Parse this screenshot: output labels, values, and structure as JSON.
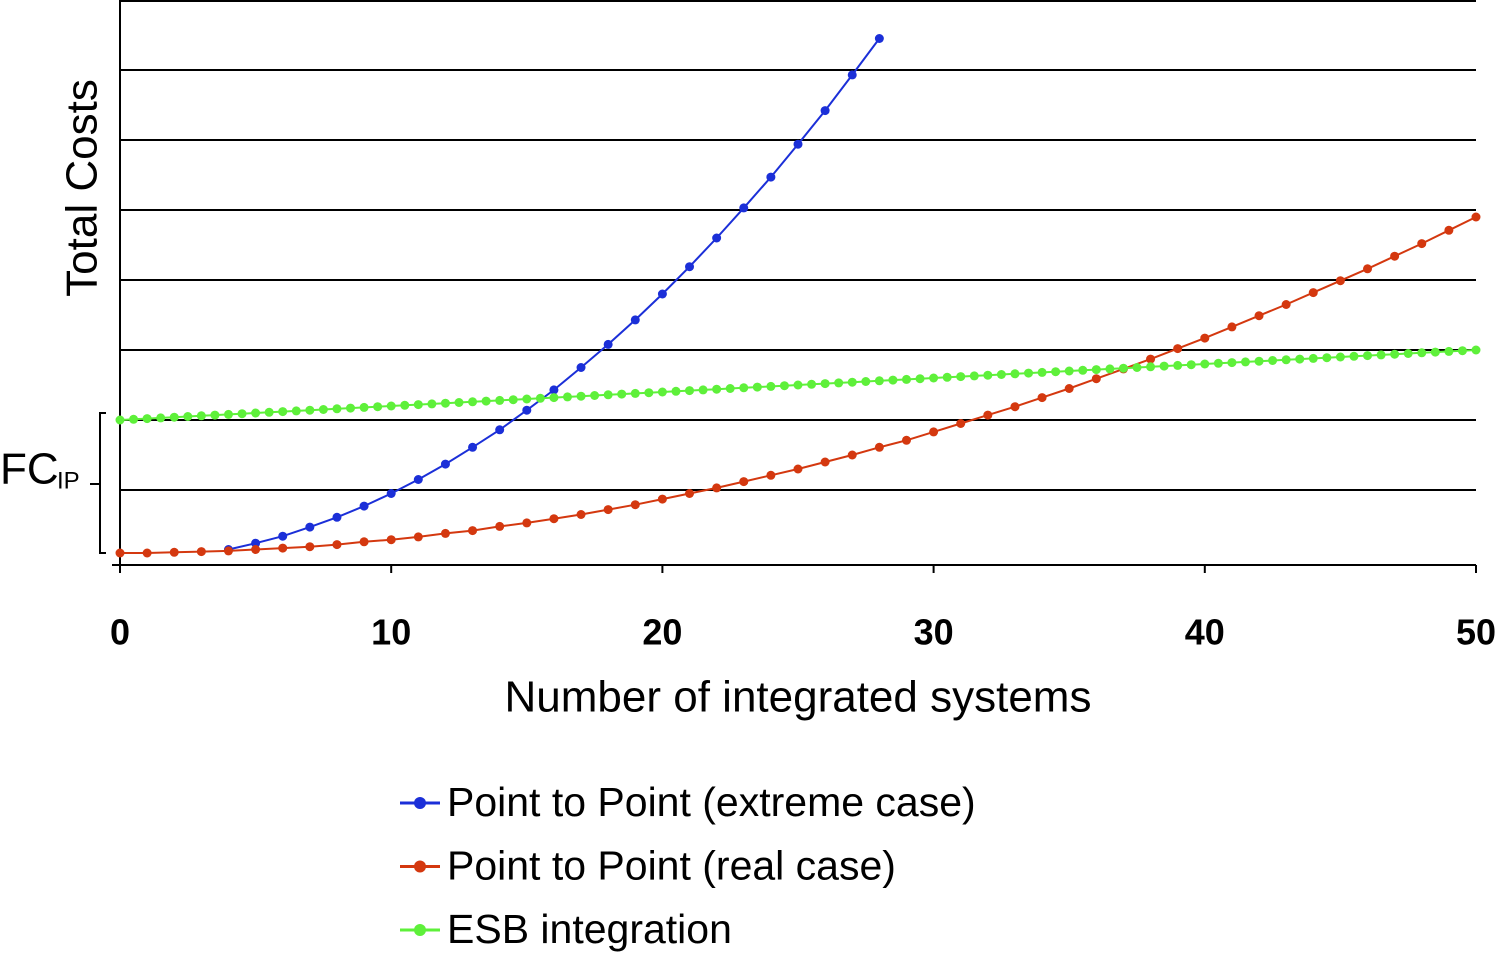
{
  "chart_data": {
    "type": "line",
    "xlabel": "Number of integrated systems",
    "ylabel": "Total Costs",
    "annotation": {
      "text": "FC",
      "sub": "IP"
    },
    "xlim": [
      0,
      50
    ],
    "xticks": [
      0,
      10,
      20,
      30,
      40,
      50
    ],
    "ylim": [
      0,
      8
    ],
    "yticks": [
      1,
      2,
      3,
      4,
      5,
      6,
      7,
      8
    ],
    "ytick_labels": false,
    "grid": true,
    "legend": "bottom",
    "series": [
      {
        "name": "Point to Point (extreme case)",
        "color": "#1b2fd8",
        "x": [
          4,
          5,
          6,
          7,
          8,
          9,
          10,
          11,
          12,
          13,
          14,
          15,
          16,
          17,
          18,
          19,
          20,
          21,
          22,
          23,
          24,
          25,
          26,
          27,
          28
        ],
        "values": [
          0.15,
          0.24,
          0.34,
          0.47,
          0.61,
          0.77,
          0.95,
          1.15,
          1.37,
          1.61,
          1.86,
          2.14,
          2.43,
          2.75,
          3.08,
          3.43,
          3.8,
          4.19,
          4.6,
          5.03,
          5.47,
          5.94,
          6.42,
          6.93,
          7.45
        ]
      },
      {
        "name": "Point to Point (real case)",
        "color": "#d4380f",
        "x": [
          0,
          1,
          2,
          3,
          4,
          5,
          6,
          7,
          8,
          9,
          10,
          11,
          12,
          13,
          14,
          15,
          16,
          17,
          18,
          19,
          20,
          21,
          22,
          23,
          24,
          25,
          26,
          27,
          28,
          29,
          30,
          31,
          32,
          33,
          34,
          35,
          36,
          37,
          38,
          39,
          40,
          41,
          42,
          43,
          44,
          45,
          46,
          47,
          48,
          49,
          50
        ],
        "values": [
          0.1,
          0.1,
          0.11,
          0.12,
          0.13,
          0.15,
          0.17,
          0.19,
          0.22,
          0.26,
          0.29,
          0.33,
          0.38,
          0.42,
          0.48,
          0.53,
          0.59,
          0.65,
          0.72,
          0.79,
          0.87,
          0.95,
          1.03,
          1.12,
          1.21,
          1.3,
          1.4,
          1.5,
          1.61,
          1.71,
          1.83,
          1.95,
          2.07,
          2.19,
          2.32,
          2.45,
          2.59,
          2.73,
          2.87,
          3.02,
          3.17,
          3.33,
          3.49,
          3.65,
          3.82,
          3.99,
          4.16,
          4.34,
          4.52,
          4.71,
          4.9
        ]
      },
      {
        "name": "ESB integration",
        "color": "#5ef03a",
        "x": [
          0,
          0.5,
          1,
          1.5,
          2,
          2.5,
          3,
          3.5,
          4,
          4.5,
          5,
          5.5,
          6,
          6.5,
          7,
          7.5,
          8,
          8.5,
          9,
          9.5,
          10,
          10.5,
          11,
          11.5,
          12,
          12.5,
          13,
          13.5,
          14,
          14.5,
          15,
          15.5,
          16,
          16.5,
          17,
          17.5,
          18,
          18.5,
          19,
          19.5,
          20,
          20.5,
          21,
          21.5,
          22,
          22.5,
          23,
          23.5,
          24,
          24.5,
          25,
          25.5,
          26,
          26.5,
          27,
          27.5,
          28,
          28.5,
          29,
          29.5,
          30,
          30.5,
          31,
          31.5,
          32,
          32.5,
          33,
          33.5,
          34,
          34.5,
          35,
          35.5,
          36,
          36.5,
          37,
          37.5,
          38,
          38.5,
          39,
          39.5,
          40,
          40.5,
          41,
          41.5,
          42,
          42.5,
          43,
          43.5,
          44,
          44.5,
          45,
          45.5,
          46,
          46.5,
          47,
          47.5,
          48,
          48.5,
          49,
          49.5,
          50
        ],
        "values": [
          2,
          2.01,
          2.02,
          2.03,
          2.04,
          2.05,
          2.06,
          2.07,
          2.08,
          2.09,
          2.1,
          2.11,
          2.12,
          2.13,
          2.14,
          2.15,
          2.16,
          2.17,
          2.18,
          2.19,
          2.2,
          2.21,
          2.22,
          2.23,
          2.24,
          2.25,
          2.26,
          2.27,
          2.28,
          2.29,
          2.3,
          2.31,
          2.32,
          2.33,
          2.34,
          2.35,
          2.36,
          2.37,
          2.38,
          2.39,
          2.4,
          2.41,
          2.42,
          2.43,
          2.44,
          2.45,
          2.46,
          2.47,
          2.48,
          2.49,
          2.5,
          2.51,
          2.52,
          2.53,
          2.54,
          2.55,
          2.56,
          2.57,
          2.58,
          2.59,
          2.6,
          2.61,
          2.62,
          2.63,
          2.64,
          2.65,
          2.66,
          2.67,
          2.68,
          2.69,
          2.7,
          2.71,
          2.72,
          2.73,
          2.74,
          2.75,
          2.76,
          2.77,
          2.78,
          2.79,
          2.8,
          2.81,
          2.82,
          2.83,
          2.84,
          2.85,
          2.86,
          2.87,
          2.88,
          2.89,
          2.9,
          2.91,
          2.92,
          2.93,
          2.94,
          2.95,
          2.96,
          2.97,
          2.98,
          2.99,
          3
        ]
      }
    ]
  }
}
